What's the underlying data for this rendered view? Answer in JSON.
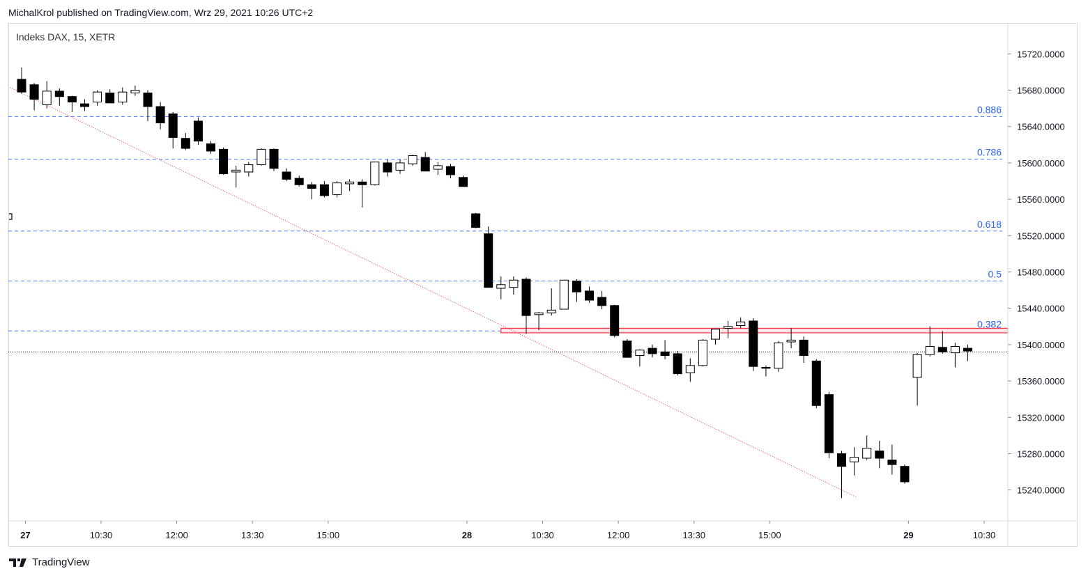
{
  "header": {
    "publish_text": "MichalKrol published on TradingView.com, Wrz 29, 2021 10:26 UTC+2",
    "symbol_title": "Indeks DAX, 15, XETR"
  },
  "footer": {
    "brand": "TradingView"
  },
  "colors": {
    "fib_line": "#2962ff",
    "fib_label": "#2962ff",
    "trendline": "#f23645",
    "zone_border": "#f23645",
    "zone_fill": "#fde4e6",
    "candle_down": "#000000",
    "candle_up_fill": "#ffffff",
    "current_price_line": "#000000"
  },
  "chart_data": {
    "type": "candlestick",
    "symbol": "Indeks DAX",
    "interval": "15",
    "exchange": "XETR",
    "y_axis": {
      "ticks": [
        "15720.0000",
        "15680.0000",
        "15640.0000",
        "15600.0000",
        "15560.0000",
        "15520.0000",
        "15480.0000",
        "15440.0000",
        "15400.0000",
        "15360.0000",
        "15320.0000",
        "15280.0000",
        "15240.0000"
      ],
      "tick_values": [
        15720,
        15680,
        15640,
        15600,
        15560,
        15520,
        15480,
        15440,
        15400,
        15360,
        15320,
        15280,
        15240
      ],
      "range": [
        15206,
        15754
      ]
    },
    "x_axis": {
      "ticks": [
        {
          "label": "27",
          "bar": 0.3,
          "bold": true
        },
        {
          "label": "10:30",
          "bar": 6.3
        },
        {
          "label": "12:00",
          "bar": 12.3
        },
        {
          "label": "13:30",
          "bar": 18.3
        },
        {
          "label": "15:00",
          "bar": 24.3
        },
        {
          "label": "28",
          "bar": 35.3,
          "bold": true
        },
        {
          "label": "10:30",
          "bar": 41.3
        },
        {
          "label": "12:00",
          "bar": 47.3
        },
        {
          "label": "13:30",
          "bar": 53.3
        },
        {
          "label": "15:00",
          "bar": 59.3
        },
        {
          "label": "29",
          "bar": 70.3,
          "bold": true
        },
        {
          "label": "10:30",
          "bar": 76.3
        }
      ]
    },
    "fib_levels": [
      {
        "label": "0.886",
        "value": 15651
      },
      {
        "label": "0.786",
        "value": 15604
      },
      {
        "label": "0.618",
        "value": 15525
      },
      {
        "label": "0.5",
        "value": 15470
      },
      {
        "label": "0.382",
        "value": 15415
      }
    ],
    "current_price": 15392,
    "resistance_zone": {
      "top": 15418,
      "bottom": 15413,
      "from_bar": 38,
      "to_bar": 78.5
    },
    "trendline": {
      "from": {
        "bar": -0.9,
        "price": 15683
      },
      "to": {
        "bar": 66.2,
        "price": 15232
      }
    },
    "candles": [
      [
        15692,
        15705,
        15676,
        15678
      ],
      [
        15686,
        15688,
        15658,
        15670
      ],
      [
        15664,
        15690,
        15660,
        15679
      ],
      [
        15679,
        15682,
        15663,
        15673
      ],
      [
        15673,
        15674,
        15656,
        15667
      ],
      [
        15665,
        15670,
        15657,
        15662
      ],
      [
        15667,
        15680,
        15663,
        15678
      ],
      [
        15677,
        15681,
        15666,
        15666
      ],
      [
        15667,
        15683,
        15664,
        15678
      ],
      [
        15677,
        15685,
        15674,
        15680
      ],
      [
        15677,
        15680,
        15646,
        15662
      ],
      [
        15662,
        15667,
        15637,
        15644
      ],
      [
        15654,
        15656,
        15616,
        15628
      ],
      [
        15627,
        15633,
        15614,
        15616
      ],
      [
        15646,
        15650,
        15620,
        15624
      ],
      [
        15621,
        15624,
        15610,
        15613
      ],
      [
        15615,
        15617,
        15587,
        15588
      ],
      [
        15590,
        15597,
        15573,
        15592
      ],
      [
        15590,
        15601,
        15585,
        15598
      ],
      [
        15598,
        15616,
        15597,
        15615
      ],
      [
        15615,
        15616,
        15591,
        15594
      ],
      [
        15590,
        15594,
        15580,
        15582
      ],
      [
        15583,
        15586,
        15574,
        15576
      ],
      [
        15576,
        15579,
        15560,
        15572
      ],
      [
        15576,
        15580,
        15562,
        15564
      ],
      [
        15565,
        15580,
        15562,
        15578
      ],
      [
        15577,
        15582,
        15569,
        15579
      ],
      [
        15579,
        15582,
        15551,
        15576
      ],
      [
        15576,
        15601,
        15575,
        15601
      ],
      [
        15600,
        15604,
        15585,
        15590
      ],
      [
        15592,
        15604,
        15588,
        15600
      ],
      [
        15599,
        15609,
        15597,
        15608
      ],
      [
        15606,
        15612,
        15591,
        15591
      ],
      [
        15593,
        15601,
        15587,
        15597
      ],
      [
        15596,
        15599,
        15583,
        15587
      ],
      [
        15584,
        15586,
        15574,
        15574
      ],
      [
        15544,
        15545,
        15528,
        15529
      ],
      [
        15522,
        15530,
        15463,
        15463
      ],
      [
        15462,
        15475,
        15450,
        15466
      ],
      [
        15463,
        15475,
        15455,
        15471
      ],
      [
        15472,
        15474,
        15412,
        15432
      ],
      [
        15433,
        15436,
        15416,
        15435
      ],
      [
        15435,
        15462,
        15432,
        15438
      ],
      [
        15439,
        15469,
        15439,
        15471
      ],
      [
        15470,
        15472,
        15447,
        15458
      ],
      [
        15459,
        15464,
        15446,
        15449
      ],
      [
        15452,
        15459,
        15439,
        15443
      ],
      [
        15443,
        15444,
        15408,
        15410
      ],
      [
        15404,
        15406,
        15386,
        15386
      ],
      [
        15388,
        15395,
        15376,
        15394
      ],
      [
        15396,
        15400,
        15386,
        15390
      ],
      [
        15392,
        15405,
        15384,
        15388
      ],
      [
        15390,
        15393,
        15366,
        15368
      ],
      [
        15369,
        15385,
        15359,
        15377
      ],
      [
        15377,
        15406,
        15376,
        15405
      ],
      [
        15406,
        15417,
        15400,
        15417
      ],
      [
        15418,
        15426,
        15407,
        15420
      ],
      [
        15421,
        15430,
        15418,
        15425
      ],
      [
        15426,
        15429,
        15371,
        15376
      ],
      [
        15375,
        15377,
        15365,
        15374
      ],
      [
        15374,
        15404,
        15370,
        15402
      ],
      [
        15403,
        15418,
        15396,
        15405
      ],
      [
        15405,
        15409,
        15380,
        15388
      ],
      [
        15382,
        15384,
        15330,
        15333
      ],
      [
        15345,
        15348,
        15275,
        15281
      ],
      [
        15280,
        15283,
        15231,
        15266
      ],
      [
        15271,
        15287,
        15256,
        15276
      ],
      [
        15275,
        15300,
        15273,
        15286
      ],
      [
        15283,
        15294,
        15264,
        15275
      ],
      [
        15273,
        15290,
        15257,
        15268
      ],
      [
        15266,
        15268,
        15247,
        15249
      ],
      [
        15364,
        15391,
        15333,
        15389
      ],
      [
        15389,
        15420,
        15387,
        15398
      ],
      [
        15397,
        15415,
        15390,
        15392
      ],
      [
        15391,
        15402,
        15375,
        15398
      ],
      [
        15396,
        15400,
        15382,
        15393
      ]
    ]
  }
}
